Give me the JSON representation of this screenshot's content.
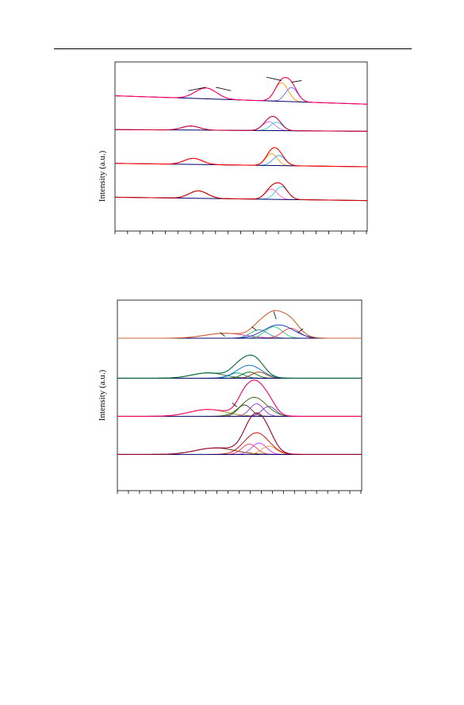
{
  "page": {
    "has_header_rule": true
  },
  "chart_data": [
    {
      "type": "line",
      "title": "",
      "xlabel": "",
      "ylabel": "Intensity (a.u.)",
      "xlim": [
        0,
        100
      ],
      "ylim": [
        0,
        5
      ],
      "grid": false,
      "traces": [
        {
          "baseline_y": 4.0,
          "tail_y": 3.75,
          "peaks": [
            {
              "center": 36,
              "height": 0.32,
              "width": 4.2,
              "color": "#cc33cc"
            },
            {
              "center": 66,
              "height": 0.55,
              "width": 2.6,
              "color": "#ff9900"
            },
            {
              "center": 70,
              "height": 0.42,
              "width": 2.4,
              "color": "#6666ff"
            }
          ],
          "envelope_color": "#ff0066",
          "callouts": [
            [
              29,
              4.15,
              36,
              4.25
            ],
            [
              46,
              4.15,
              40,
              4.25
            ],
            [
              60,
              4.55,
              66,
              4.45
            ],
            [
              74,
              4.45,
              70,
              4.4
            ]
          ]
        },
        {
          "baseline_y": 3.0,
          "tail_y": 2.95,
          "peaks": [
            {
              "center": 30,
              "height": 0.12,
              "width": 3.5,
              "color": "#6600cc"
            },
            {
              "center": 61,
              "height": 0.26,
              "width": 2.5,
              "color": "#cc66ff"
            },
            {
              "center": 64,
              "height": 0.25,
              "width": 2.4,
              "color": "#33cccc"
            }
          ],
          "envelope_color": "#cc0033",
          "callouts": []
        },
        {
          "baseline_y": 2.0,
          "tail_y": 1.9,
          "peaks": [
            {
              "center": 31,
              "height": 0.18,
              "width": 3.6,
              "color": "#cc00cc"
            },
            {
              "center": 62,
              "height": 0.35,
              "width": 2.3,
              "color": "#ff9900"
            },
            {
              "center": 65,
              "height": 0.3,
              "width": 2.4,
              "color": "#3399ff"
            }
          ],
          "envelope_color": "#ff0000",
          "callouts": []
        },
        {
          "baseline_y": 1.0,
          "tail_y": 0.9,
          "peaks": [
            {
              "center": 33,
              "height": 0.22,
              "width": 3.6,
              "color": "#660066"
            },
            {
              "center": 62,
              "height": 0.3,
              "width": 2.4,
              "color": "#ff66cc"
            },
            {
              "center": 66,
              "height": 0.38,
              "width": 2.5,
              "color": "#33ccff"
            }
          ],
          "envelope_color": "#cc0000",
          "callouts": []
        }
      ]
    },
    {
      "type": "line",
      "title": "",
      "xlabel": "",
      "ylabel": "Intensity (a.u.)",
      "xlim": [
        0,
        100
      ],
      "ylim": [
        0,
        5
      ],
      "grid": false,
      "traces": [
        {
          "baseline_y": 4.0,
          "tail_y": 4.0,
          "peaks": [
            {
              "center": 44,
              "height": 0.13,
              "width": 8.0,
              "color": "#cc3399"
            },
            {
              "center": 58,
              "height": 0.22,
              "width": 3.5,
              "color": "#339999"
            },
            {
              "center": 64,
              "height": 0.3,
              "width": 3.5,
              "color": "#33cc66"
            },
            {
              "center": 71,
              "height": 0.26,
              "width": 3.5,
              "color": "#ff3333"
            },
            {
              "center": 66,
              "height": 0.35,
              "width": 6.0,
              "color": "#0033cc"
            }
          ],
          "envelope_color": "#cc6633",
          "callouts": [
            [
              44,
              4.05,
              42,
              4.15
            ],
            [
              57,
              4.2,
              55,
              4.3
            ],
            [
              65,
              4.5,
              64,
              4.7
            ],
            [
              76,
              4.25,
              74,
              4.15
            ]
          ]
        },
        {
          "baseline_y": 2.95,
          "tail_y": 2.95,
          "peaks": [
            {
              "center": 37,
              "height": 0.14,
              "width": 6.5,
              "color": "#336633"
            },
            {
              "center": 49,
              "height": 0.14,
              "width": 3.0,
              "color": "#009999"
            },
            {
              "center": 54,
              "height": 0.16,
              "width": 3.0,
              "color": "#006600"
            },
            {
              "center": 58,
              "height": 0.16,
              "width": 3.0,
              "color": "#993300"
            },
            {
              "center": 54,
              "height": 0.34,
              "width": 5.0,
              "color": "#0066cc"
            }
          ],
          "envelope_color": "#006633",
          "callouts": []
        },
        {
          "baseline_y": 1.95,
          "tail_y": 1.95,
          "peaks": [
            {
              "center": 37,
              "height": 0.18,
              "width": 7.5,
              "color": "#999900"
            },
            {
              "center": 52,
              "height": 0.3,
              "width": 2.8,
              "color": "#333333"
            },
            {
              "center": 57,
              "height": 0.33,
              "width": 2.8,
              "color": "#9933cc"
            },
            {
              "center": 62,
              "height": 0.26,
              "width": 2.8,
              "color": "#6633cc"
            },
            {
              "center": 56,
              "height": 0.5,
              "width": 5.0,
              "color": "#336600"
            }
          ],
          "envelope_color": "#ff0066",
          "callouts": [
            [
              47,
              2.3,
              49,
              2.2
            ]
          ]
        },
        {
          "baseline_y": 0.95,
          "tail_y": 0.95,
          "peaks": [
            {
              "center": 40,
              "height": 0.17,
              "width": 8.0,
              "color": "#663300"
            },
            {
              "center": 54,
              "height": 0.27,
              "width": 3.0,
              "color": "#ff3366"
            },
            {
              "center": 58,
              "height": 0.3,
              "width": 3.0,
              "color": "#cc33ff"
            },
            {
              "center": 62,
              "height": 0.22,
              "width": 3.0,
              "color": "#ff9933"
            },
            {
              "center": 57,
              "height": 0.57,
              "width": 5.0,
              "color": "#cc0000"
            }
          ],
          "envelope_color": "#990033",
          "callouts": []
        }
      ]
    }
  ]
}
